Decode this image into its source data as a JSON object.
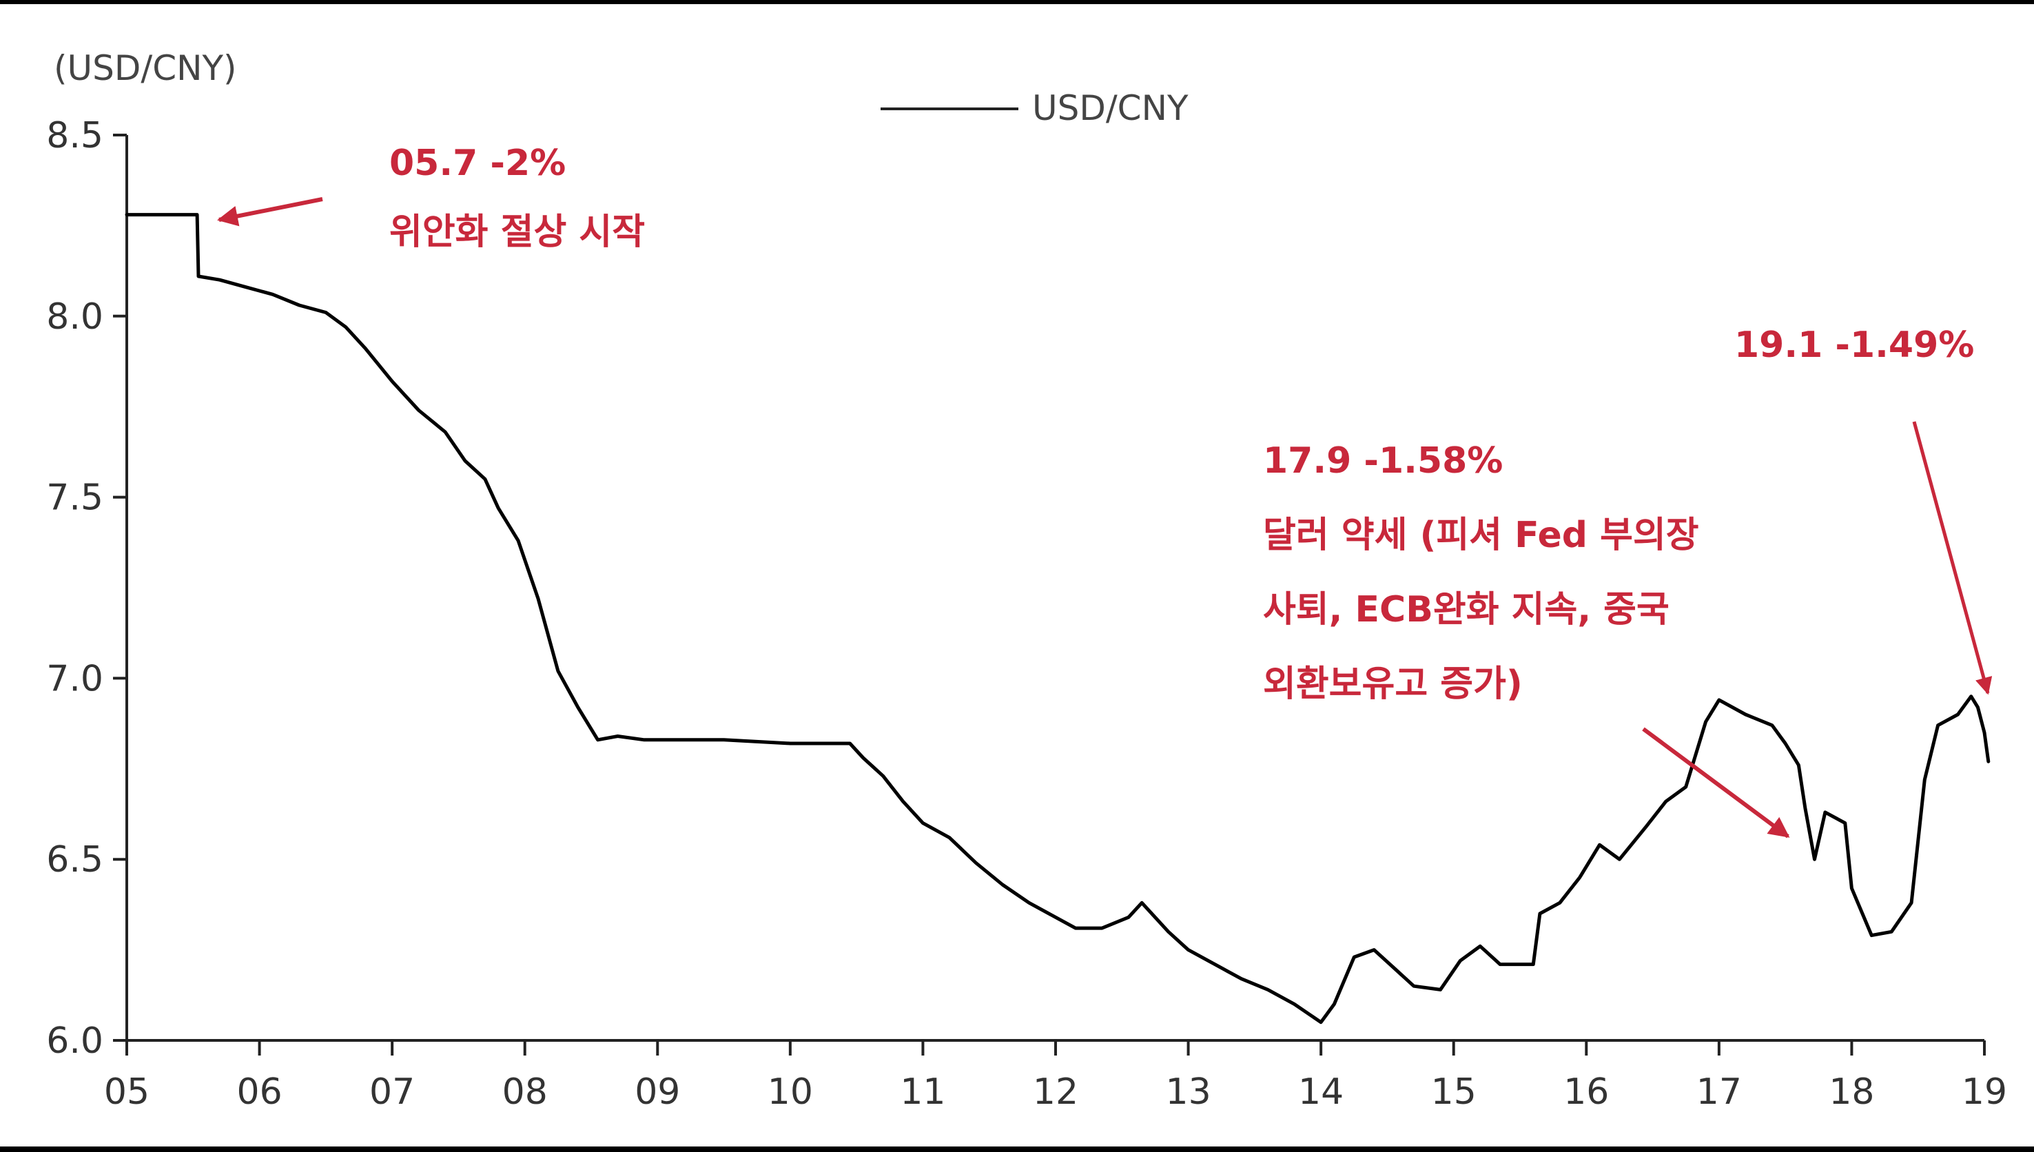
{
  "chart_data": {
    "type": "line",
    "y_unit_label": "(USD/CNY)",
    "legend": "USD/CNY",
    "ylim": [
      6.0,
      8.5
    ],
    "y_ticks": [
      "6.0",
      "6.5",
      "7.0",
      "7.5",
      "8.0",
      "8.5"
    ],
    "x_ticks": [
      "05",
      "06",
      "07",
      "08",
      "09",
      "10",
      "11",
      "12",
      "13",
      "14",
      "15",
      "16",
      "17",
      "18",
      "19"
    ],
    "xlim": [
      2005.0,
      2019.0
    ],
    "series": [
      {
        "name": "USD/CNY",
        "color": "#000000",
        "points": [
          [
            2005.0,
            8.28
          ],
          [
            2005.5,
            8.28
          ],
          [
            2005.53,
            8.28
          ],
          [
            2005.54,
            8.11
          ],
          [
            2005.7,
            8.1
          ],
          [
            2005.9,
            8.08
          ],
          [
            2006.1,
            8.06
          ],
          [
            2006.3,
            8.03
          ],
          [
            2006.5,
            8.01
          ],
          [
            2006.65,
            7.97
          ],
          [
            2006.8,
            7.91
          ],
          [
            2007.0,
            7.82
          ],
          [
            2007.2,
            7.74
          ],
          [
            2007.4,
            7.68
          ],
          [
            2007.55,
            7.6
          ],
          [
            2007.7,
            7.55
          ],
          [
            2007.8,
            7.47
          ],
          [
            2007.95,
            7.38
          ],
          [
            2008.1,
            7.22
          ],
          [
            2008.25,
            7.02
          ],
          [
            2008.4,
            6.92
          ],
          [
            2008.55,
            6.83
          ],
          [
            2008.7,
            6.84
          ],
          [
            2008.9,
            6.83
          ],
          [
            2009.5,
            6.83
          ],
          [
            2010.0,
            6.82
          ],
          [
            2010.3,
            6.82
          ],
          [
            2010.45,
            6.82
          ],
          [
            2010.55,
            6.78
          ],
          [
            2010.7,
            6.73
          ],
          [
            2010.85,
            6.66
          ],
          [
            2011.0,
            6.6
          ],
          [
            2011.2,
            6.56
          ],
          [
            2011.4,
            6.49
          ],
          [
            2011.6,
            6.43
          ],
          [
            2011.8,
            6.38
          ],
          [
            2012.0,
            6.34
          ],
          [
            2012.15,
            6.31
          ],
          [
            2012.35,
            6.31
          ],
          [
            2012.55,
            6.34
          ],
          [
            2012.65,
            6.38
          ],
          [
            2012.85,
            6.3
          ],
          [
            2013.0,
            6.25
          ],
          [
            2013.2,
            6.21
          ],
          [
            2013.4,
            6.17
          ],
          [
            2013.6,
            6.14
          ],
          [
            2013.8,
            6.1
          ],
          [
            2014.0,
            6.05
          ],
          [
            2014.1,
            6.1
          ],
          [
            2014.25,
            6.23
          ],
          [
            2014.4,
            6.25
          ],
          [
            2014.55,
            6.2
          ],
          [
            2014.7,
            6.15
          ],
          [
            2014.9,
            6.14
          ],
          [
            2015.05,
            6.22
          ],
          [
            2015.2,
            6.26
          ],
          [
            2015.35,
            6.21
          ],
          [
            2015.6,
            6.21
          ],
          [
            2015.65,
            6.35
          ],
          [
            2015.8,
            6.38
          ],
          [
            2015.95,
            6.45
          ],
          [
            2016.1,
            6.54
          ],
          [
            2016.25,
            6.5
          ],
          [
            2016.45,
            6.59
          ],
          [
            2016.6,
            6.66
          ],
          [
            2016.75,
            6.7
          ],
          [
            2016.9,
            6.88
          ],
          [
            2017.0,
            6.94
          ],
          [
            2017.2,
            6.9
          ],
          [
            2017.4,
            6.87
          ],
          [
            2017.5,
            6.82
          ],
          [
            2017.6,
            6.76
          ],
          [
            2017.65,
            6.64
          ],
          [
            2017.72,
            6.5
          ],
          [
            2017.8,
            6.63
          ],
          [
            2017.95,
            6.6
          ],
          [
            2018.0,
            6.42
          ],
          [
            2018.15,
            6.29
          ],
          [
            2018.3,
            6.3
          ],
          [
            2018.45,
            6.38
          ],
          [
            2018.55,
            6.72
          ],
          [
            2018.65,
            6.87
          ],
          [
            2018.8,
            6.9
          ],
          [
            2018.9,
            6.95
          ],
          [
            2018.95,
            6.92
          ],
          [
            2019.0,
            6.85
          ],
          [
            2019.03,
            6.77
          ]
        ]
      }
    ],
    "annotations": [
      {
        "lines": [
          "05.7  -2%",
          "위안화 절상 시작"
        ]
      },
      {
        "lines": [
          "17.9  -1.58%",
          "달러 약세 (피셔 Fed 부의장",
          "사퇴, ECB완화 지속, 중국",
          "외환보유고 증가)"
        ]
      },
      {
        "lines": [
          "19.1  -1.49%"
        ]
      }
    ],
    "annotation_color": "#c8283b"
  }
}
